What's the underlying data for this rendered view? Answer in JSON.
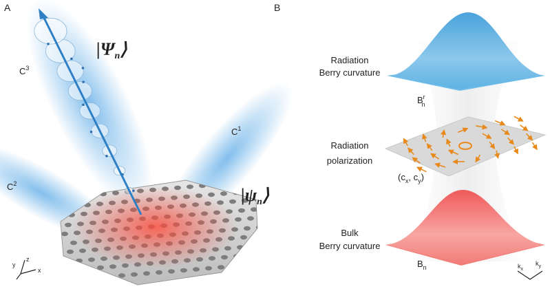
{
  "panel_a": {
    "label": "A",
    "radiation_state": {
      "open": "|",
      "symbol": "Ψ",
      "sub": "n",
      "close": "⟩"
    },
    "bulk_state": {
      "open": "|",
      "symbol": "ψ",
      "sub": "n",
      "close": "⟩"
    },
    "beams": [
      {
        "base": "C",
        "sup": "3"
      },
      {
        "base": "C",
        "sup": "1"
      },
      {
        "base": "C",
        "sup": "2"
      }
    ],
    "axes": {
      "x": "x",
      "y": "y",
      "z": "z"
    }
  },
  "panel_b": {
    "label": "B",
    "top": {
      "lines": [
        "Radiation",
        "Berry curvature"
      ],
      "symbol": {
        "base": "B",
        "sup": "r",
        "sub": "n"
      }
    },
    "middle": {
      "lines": [
        "Radiation",
        "polarization"
      ],
      "symbol": {
        "open": "(c",
        "sub1": "x",
        "mid": ", c",
        "sub2": "y",
        "close": ")"
      }
    },
    "bottom": {
      "lines": [
        "Bulk",
        "Berry curvature"
      ],
      "symbol": {
        "base": "B",
        "sub": "n"
      }
    },
    "axes": {
      "kx": {
        "base": "k",
        "sub": "x"
      },
      "ky": {
        "base": "k",
        "sub": "y"
      }
    }
  }
}
